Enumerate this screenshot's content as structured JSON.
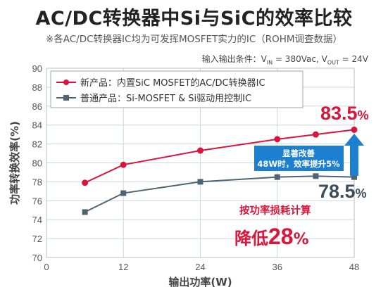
{
  "header": {
    "title": "AC/DC转换器中Si与SiC的效率比较",
    "subtitle": "※各AC/DC转换器IC均为可发挥MOSFET实力的IC（ROHM调查数据）",
    "conditions": "输入输出条件：V",
    "conditions_vin_sub": "IN",
    "conditions_mid": " = 380Vac, V",
    "conditions_vout_sub": "OUT",
    "conditions_end": " = 24V"
  },
  "annotations": {
    "red_value": "83.5",
    "gray_value": "78.5",
    "percent": "%",
    "improve_line1": "显著改善",
    "improve_line2": "48W时，效率提升5%",
    "loss_line1": "按功率损耗计算",
    "loss_line2_prefix": "降低",
    "loss_line2_value": "28",
    "loss_line2_suffix": "%"
  },
  "colors": {
    "sic": "#d8153b",
    "si": "#4f6473",
    "improve_box": "#1c7fd0",
    "grid": "#cfd6de"
  },
  "chart_data": {
    "type": "line",
    "title": "AC/DC转换器中Si与SiC的效率比较",
    "xlabel": "输出功率(W)",
    "ylabel": "功率转换效率(%)",
    "xlim": [
      0,
      48
    ],
    "ylim": [
      70,
      90
    ],
    "xticks": [
      0,
      12,
      24,
      36,
      48
    ],
    "yticks": [
      70,
      72,
      74,
      76,
      78,
      80,
      82,
      84,
      86,
      88,
      90
    ],
    "grid": true,
    "legend_position": "top-left",
    "series": [
      {
        "name": "新产品：内置SiC MOSFET的AC/DC转换器IC",
        "marker": "circle",
        "color": "#d8153b",
        "x": [
          6,
          12,
          24,
          36,
          42,
          48
        ],
        "y": [
          77.9,
          79.8,
          81.3,
          82.5,
          83.0,
          83.5
        ]
      },
      {
        "name": "普通产品：Si-MOSFET & Si驱动用控制IC",
        "marker": "square",
        "color": "#4f6473",
        "x": [
          6,
          12,
          24,
          36,
          42,
          48
        ],
        "y": [
          74.8,
          76.8,
          78.0,
          78.5,
          78.6,
          78.5
        ]
      }
    ]
  }
}
